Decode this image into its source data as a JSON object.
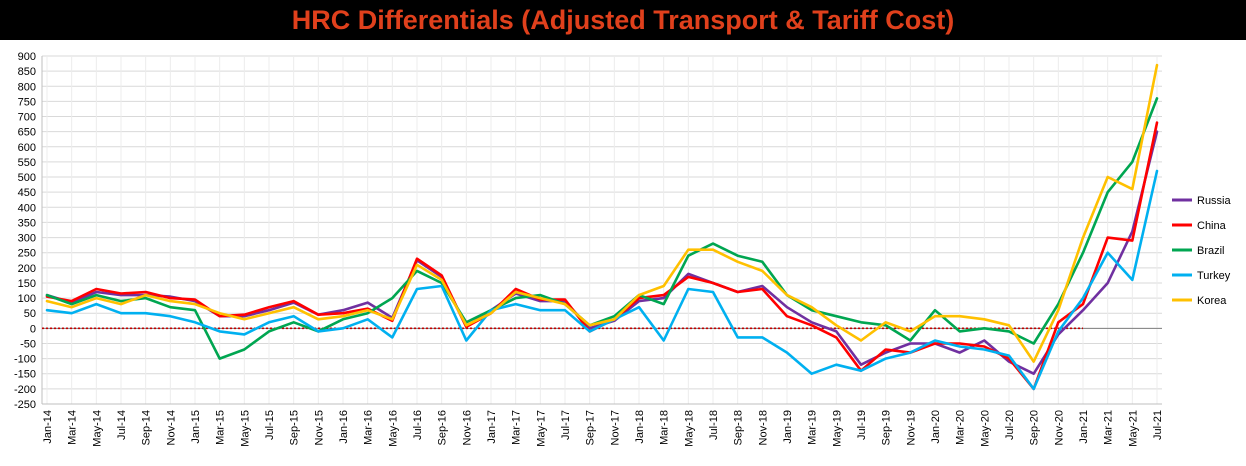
{
  "title": "HRC Differentials (Adjusted Transport & Tariff Cost)",
  "chart_data": {
    "type": "line",
    "title": "HRC Differentials (Adjusted Transport & Tariff Cost)",
    "xlabel": "",
    "ylabel": "",
    "ylim": [
      -250,
      900
    ],
    "y_ticks": [
      -250,
      -200,
      -150,
      -100,
      -50,
      0,
      50,
      100,
      150,
      200,
      250,
      300,
      350,
      400,
      450,
      500,
      550,
      600,
      650,
      700,
      750,
      800,
      850,
      900
    ],
    "x_ticks": [
      "Jan-14",
      "Mar-14",
      "May-14",
      "Jul-14",
      "Sep-14",
      "Nov-14",
      "Jan-15",
      "Mar-15",
      "May-15",
      "Jul-15",
      "Sep-15",
      "Nov-15",
      "Jan-16",
      "Mar-16",
      "May-16",
      "Jul-16",
      "Sep-16",
      "Nov-16",
      "Jan-17",
      "Mar-17",
      "May-17",
      "Jul-17",
      "Sep-17",
      "Nov-17",
      "Jan-18",
      "Mar-18",
      "May-18",
      "Jul-18",
      "Sep-18",
      "Nov-18",
      "Jan-19",
      "Mar-19",
      "May-19",
      "Jul-19",
      "Sep-19",
      "Nov-19",
      "Jan-20",
      "Mar-20",
      "May-20",
      "Jul-20",
      "Sep-20",
      "Nov-20",
      "Jan-21",
      "Mar-21",
      "May-21",
      "Jul-21"
    ],
    "grid": true,
    "legend_position": "right",
    "zero_line_color": "#c00000",
    "x": [
      "Jan-14",
      "Mar-14",
      "May-14",
      "Jul-14",
      "Sep-14",
      "Nov-14",
      "Jan-15",
      "Mar-15",
      "May-15",
      "Jul-15",
      "Sep-15",
      "Nov-15",
      "Jan-16",
      "Mar-16",
      "May-16",
      "Jul-16",
      "Sep-16",
      "Nov-16",
      "Jan-17",
      "Mar-17",
      "May-17",
      "Jul-17",
      "Sep-17",
      "Nov-17",
      "Jan-18",
      "Mar-18",
      "May-18",
      "Jul-18",
      "Sep-18",
      "Nov-18",
      "Jan-19",
      "Mar-19",
      "May-19",
      "Jul-19",
      "Sep-19",
      "Nov-19",
      "Jan-20",
      "Mar-20",
      "May-20",
      "Jul-20",
      "Sep-20",
      "Nov-20",
      "Jan-21",
      "Mar-21",
      "May-21",
      "Jul-21"
    ],
    "series": [
      {
        "name": "Russia",
        "color": "#7030a0",
        "values": [
          110,
          85,
          120,
          110,
          110,
          105,
          90,
          40,
          40,
          60,
          85,
          45,
          60,
          85,
          35,
          225,
          170,
          5,
          60,
          115,
          90,
          90,
          0,
          25,
          90,
          100,
          180,
          150,
          120,
          140,
          70,
          20,
          -10,
          -120,
          -80,
          -50,
          -50,
          -80,
          -40,
          -110,
          -150,
          -20,
          60,
          150,
          320,
          650
        ]
      },
      {
        "name": "China",
        "color": "#ff0000",
        "values": [
          105,
          90,
          130,
          115,
          120,
          100,
          95,
          40,
          45,
          70,
          90,
          45,
          50,
          65,
          25,
          230,
          175,
          5,
          50,
          130,
          95,
          95,
          -10,
          30,
          100,
          110,
          170,
          150,
          120,
          130,
          40,
          10,
          -30,
          -140,
          -70,
          -80,
          -50,
          -50,
          -60,
          -100,
          -200,
          20,
          80,
          300,
          290,
          680
        ]
      },
      {
        "name": "Brazil",
        "color": "#00a651",
        "values": [
          110,
          80,
          110,
          90,
          100,
          70,
          60,
          -100,
          -70,
          -10,
          20,
          -10,
          30,
          50,
          100,
          190,
          150,
          20,
          60,
          100,
          110,
          80,
          10,
          40,
          110,
          80,
          240,
          280,
          240,
          220,
          110,
          60,
          40,
          20,
          10,
          -40,
          60,
          -10,
          0,
          -10,
          -50,
          80,
          250,
          450,
          550,
          760
        ]
      },
      {
        "name": "Turkey",
        "color": "#00b0f0",
        "values": [
          60,
          50,
          80,
          50,
          50,
          40,
          20,
          -10,
          -20,
          20,
          40,
          -10,
          0,
          30,
          -30,
          130,
          140,
          -40,
          60,
          80,
          60,
          60,
          -10,
          30,
          70,
          -40,
          130,
          120,
          -30,
          -30,
          -80,
          -150,
          -120,
          -140,
          -100,
          -80,
          -40,
          -60,
          -70,
          -90,
          -200,
          -10,
          100,
          250,
          160,
          520
        ]
      },
      {
        "name": "Korea",
        "color": "#ffc000",
        "values": [
          90,
          70,
          100,
          80,
          110,
          90,
          80,
          50,
          30,
          50,
          70,
          30,
          40,
          60,
          30,
          210,
          160,
          10,
          50,
          120,
          100,
          80,
          10,
          30,
          110,
          140,
          260,
          260,
          220,
          190,
          110,
          70,
          10,
          -40,
          20,
          -10,
          40,
          40,
          30,
          10,
          -110,
          60,
          300,
          500,
          460,
          870
        ]
      }
    ]
  }
}
